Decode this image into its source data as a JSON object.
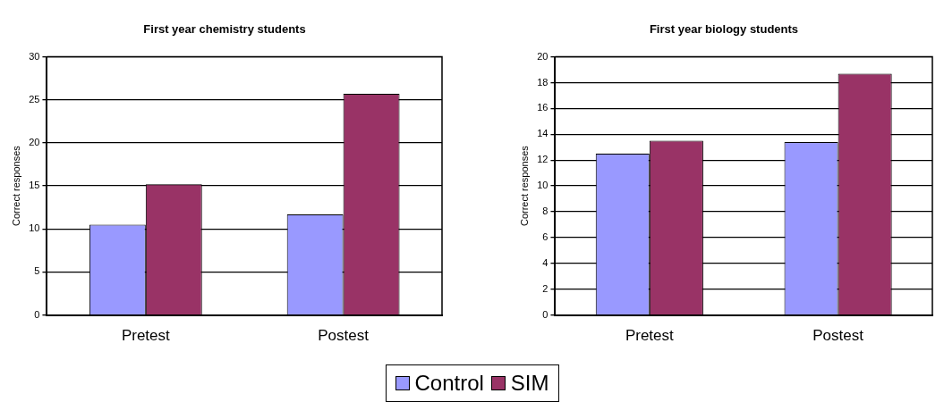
{
  "chart_data": [
    {
      "type": "bar",
      "title": "First year chemistry students",
      "ylabel": "Correct responses",
      "categories": [
        "Pretest",
        "Postest"
      ],
      "series": [
        {
          "name": "Control",
          "color": "#9999ff",
          "values": [
            10.5,
            11.7
          ]
        },
        {
          "name": "SIM",
          "color": "#993366",
          "values": [
            15.2,
            25.7
          ]
        }
      ],
      "ylim": [
        0,
        30
      ],
      "yticks": [
        0,
        5,
        10,
        15,
        20,
        25,
        30
      ],
      "grid": "y",
      "legend": "bottom"
    },
    {
      "type": "bar",
      "title": "First year biology students",
      "ylabel": "Correct responses",
      "categories": [
        "Pretest",
        "Postest"
      ],
      "series": [
        {
          "color": "#9999ff",
          "values": [
            12.5,
            13.4
          ]
        },
        {
          "color": "#993366",
          "values": [
            13.5,
            18.7
          ]
        }
      ],
      "ylim": [
        0,
        20
      ],
      "yticks": [
        0,
        2,
        4,
        6,
        8,
        10,
        12,
        14,
        16,
        18,
        20
      ],
      "grid": "y"
    }
  ]
}
